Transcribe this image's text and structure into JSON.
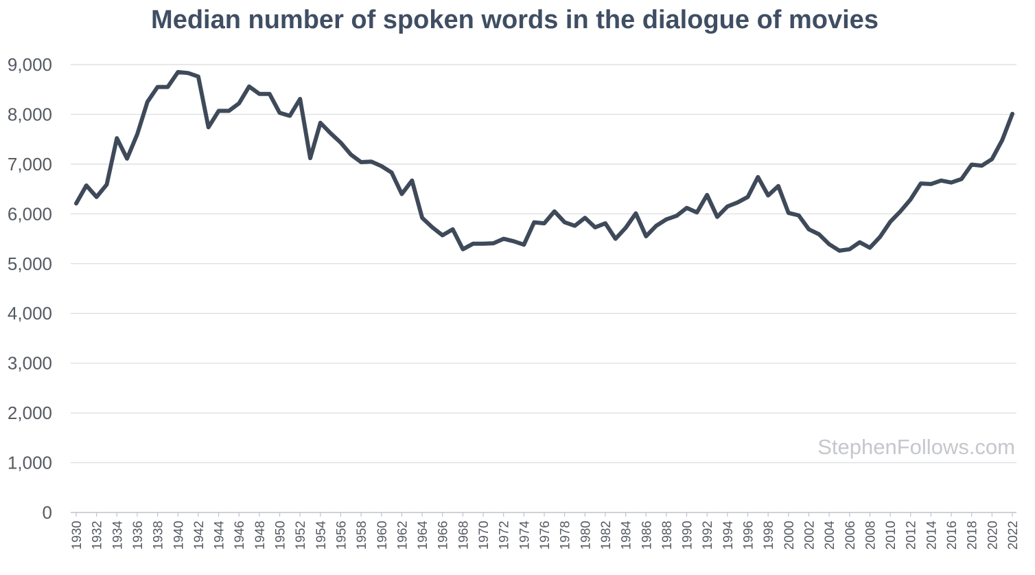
{
  "chart_data": {
    "type": "line",
    "title": "Median number of spoken words in the dialogue of movies",
    "xlabel": "",
    "ylabel": "",
    "ylim": [
      0,
      9000
    ],
    "y_ticks": [
      "0",
      "1,000",
      "2,000",
      "3,000",
      "4,000",
      "5,000",
      "6,000",
      "7,000",
      "8,000",
      "9,000"
    ],
    "x_tick_labels": [
      "1930",
      "1932",
      "1934",
      "1936",
      "1938",
      "1940",
      "1942",
      "1944",
      "1946",
      "1948",
      "1950",
      "1952",
      "1954",
      "1956",
      "1958",
      "1960",
      "1962",
      "1964",
      "1966",
      "1968",
      "1970",
      "1972",
      "1974",
      "1976",
      "1978",
      "1980",
      "1982",
      "1984",
      "1986",
      "1988",
      "1990",
      "1992",
      "1994",
      "1996",
      "1998",
      "2000",
      "2002",
      "2004",
      "2006",
      "2008",
      "2010",
      "2012",
      "2014",
      "2016",
      "2018",
      "2020",
      "2022"
    ],
    "grid": true,
    "line_color": "#3e4a59",
    "x": [
      1930,
      1931,
      1932,
      1933,
      1934,
      1935,
      1936,
      1937,
      1938,
      1939,
      1940,
      1941,
      1942,
      1943,
      1944,
      1945,
      1946,
      1947,
      1948,
      1949,
      1950,
      1951,
      1952,
      1953,
      1954,
      1955,
      1956,
      1957,
      1958,
      1959,
      1960,
      1961,
      1962,
      1963,
      1964,
      1965,
      1966,
      1967,
      1968,
      1969,
      1970,
      1971,
      1972,
      1973,
      1974,
      1975,
      1976,
      1977,
      1978,
      1979,
      1980,
      1981,
      1982,
      1983,
      1984,
      1985,
      1986,
      1987,
      1988,
      1989,
      1990,
      1991,
      1992,
      1993,
      1994,
      1995,
      1996,
      1997,
      1998,
      1999,
      2000,
      2001,
      2002,
      2003,
      2004,
      2005,
      2006,
      2007,
      2008,
      2009,
      2010,
      2011,
      2012,
      2013,
      2014,
      2015,
      2016,
      2017,
      2018,
      2019,
      2020,
      2021,
      2022
    ],
    "values": [
      6210,
      6570,
      6340,
      6590,
      7520,
      7110,
      7600,
      8250,
      8550,
      8550,
      8850,
      8830,
      8760,
      7740,
      8070,
      8070,
      8220,
      8560,
      8410,
      8410,
      8030,
      7970,
      8310,
      7120,
      7830,
      7620,
      7430,
      7190,
      7040,
      7050,
      6960,
      6830,
      6400,
      6670,
      5920,
      5730,
      5570,
      5690,
      5290,
      5400,
      5400,
      5410,
      5500,
      5450,
      5380,
      5830,
      5810,
      6050,
      5830,
      5760,
      5920,
      5730,
      5810,
      5500,
      5720,
      6010,
      5550,
      5760,
      5890,
      5960,
      6120,
      6030,
      6380,
      5940,
      6150,
      6230,
      6340,
      6740,
      6370,
      6560,
      6020,
      5970,
      5690,
      5590,
      5390,
      5260,
      5290,
      5430,
      5320,
      5540,
      5840,
      6050,
      6290,
      6610,
      6600,
      6670,
      6630,
      6700,
      6990,
      6970,
      7100,
      7480,
      8010
    ],
    "watermark": "StephenFollows.com"
  }
}
